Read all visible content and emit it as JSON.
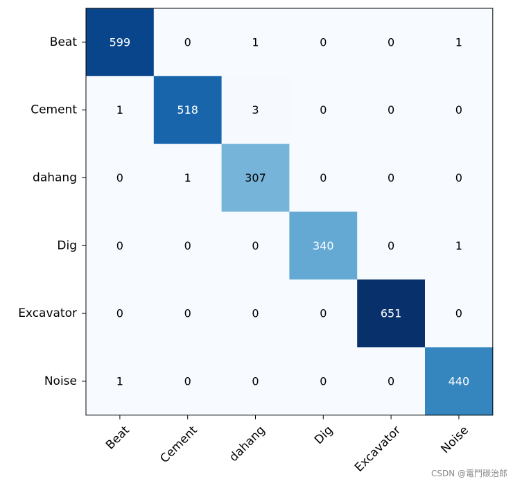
{
  "chart_data": {
    "type": "heatmap",
    "title": "",
    "xlabel": "",
    "ylabel": "",
    "colormap": "Blues",
    "rows": [
      "Beat",
      "Cement",
      "dahang",
      "Dig",
      "Excavator",
      "Noise"
    ],
    "columns": [
      "Beat",
      "Cement",
      "dahang",
      "Dig",
      "Excavator",
      "Noise"
    ],
    "values": [
      [
        599,
        0,
        1,
        0,
        0,
        1
      ],
      [
        1,
        518,
        3,
        0,
        0,
        0
      ],
      [
        0,
        1,
        307,
        0,
        0,
        0
      ],
      [
        0,
        0,
        0,
        340,
        0,
        1
      ],
      [
        0,
        0,
        0,
        0,
        651,
        0
      ],
      [
        1,
        0,
        0,
        0,
        0,
        440
      ]
    ],
    "value_range": [
      0,
      651
    ],
    "grid": false,
    "x_tick_rotation": 45
  },
  "watermark": "CSDN @電鬥碳治郎"
}
